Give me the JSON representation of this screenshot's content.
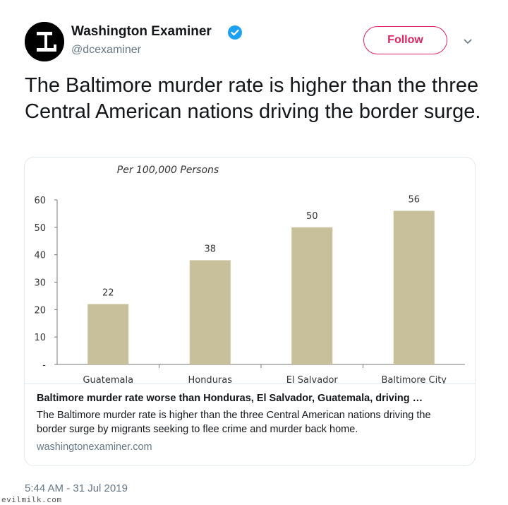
{
  "tweet": {
    "author": {
      "display_name": "Washington Examiner",
      "handle": "@dcexaminer",
      "avatar_icon": "examiner-logo-icon",
      "verified_icon": "verified-badge-icon"
    },
    "follow_label": "Follow",
    "menu_icon": "chevron-down-icon",
    "text": "The Baltimore murder rate is higher than the three Central American nations driving the border surge.",
    "timestamp": "5:44 AM - 31 Jul 2019"
  },
  "card": {
    "title": "Baltimore murder rate worse than Honduras, El Salvador, Guatemala, driving …",
    "description": "The Baltimore murder rate is higher than the three Central American nations driving the border surge by migrants seeking to flee crime and murder back home.",
    "domain": "washingtonexaminer.com"
  },
  "watermark": "evilmilk.com",
  "colors": {
    "bar": "#c8c09a",
    "follow": "#e0245e",
    "verified": "#1da1f2"
  },
  "chart_data": {
    "type": "bar",
    "title": "Per 100,000 Persons",
    "categories": [
      "Guatemala",
      "Honduras",
      "El Salvador",
      "Baltimore City"
    ],
    "values": [
      22,
      38,
      50,
      56
    ],
    "data_labels": [
      "22",
      "38",
      "50",
      "56"
    ],
    "y_ticks": [
      "60",
      "50",
      "40",
      "30",
      "20",
      "10",
      "-"
    ],
    "ylim": [
      0,
      60
    ],
    "grid": false
  }
}
